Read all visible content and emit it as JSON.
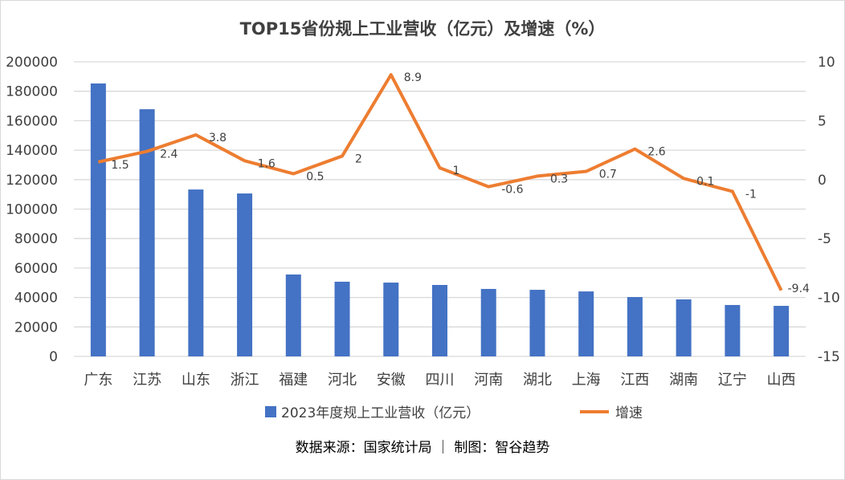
{
  "chart_data": {
    "type": "bar+line",
    "title": "TOP15省份规上工业营收（亿元）及增速（%）",
    "categories": [
      "广东",
      "江苏",
      "山东",
      "浙江",
      "福建",
      "河北",
      "安徽",
      "四川",
      "河南",
      "湖北",
      "上海",
      "江西",
      "湖南",
      "辽宁",
      "山西"
    ],
    "series": [
      {
        "name": "2023年度规上工业营收（亿元）",
        "type": "bar",
        "axis": "left",
        "color": "#4472C4",
        "values": [
          185300,
          167800,
          113300,
          110600,
          55600,
          50700,
          50100,
          48500,
          45800,
          45200,
          44100,
          40300,
          38700,
          34900,
          34300
        ]
      },
      {
        "name": "增速",
        "type": "line",
        "axis": "right",
        "color": "#ED7D31",
        "values": [
          1.5,
          2.4,
          3.8,
          1.6,
          0.5,
          2,
          8.9,
          1,
          -0.6,
          0.3,
          0.7,
          2.6,
          0.1,
          -1,
          -9.4
        ],
        "labels": [
          "1.5",
          "2.4",
          "3.8",
          "1.6",
          "0.5",
          "2",
          "8.9",
          "1",
          "-0.6",
          "0.3",
          "0.7",
          "2.6",
          "0.1",
          "-1",
          "-9.4"
        ]
      }
    ],
    "left_axis": {
      "range": [
        0,
        200000
      ],
      "ticks": [
        "0",
        "20000",
        "40000",
        "60000",
        "80000",
        "100000",
        "120000",
        "140000",
        "160000",
        "180000",
        "200000"
      ]
    },
    "right_axis": {
      "range": [
        -15,
        10
      ],
      "ticks": [
        "-15",
        "-10",
        "-5",
        "0",
        "5",
        "10"
      ]
    },
    "grid": true,
    "legend_position": "bottom"
  },
  "source_note": "数据来源：国家统计局 ｜ 制图：智谷趋势"
}
